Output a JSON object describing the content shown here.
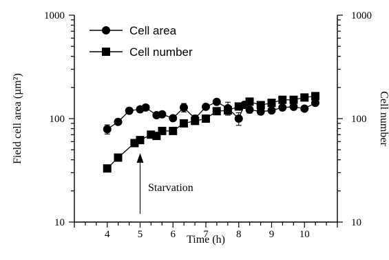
{
  "chart_data": {
    "type": "line",
    "xlabel": "Time (h)",
    "ylabel_left": "Field cell area (µm²)",
    "ylabel_right": "Cell number",
    "x_ticks": [
      "4",
      "5",
      "6",
      "7",
      "8",
      "9",
      "10"
    ],
    "y_ticks_left": [
      "10",
      "100",
      "1000"
    ],
    "y_ticks_right": [
      "10",
      "100",
      "1000"
    ],
    "y_scale": "log",
    "xlim": [
      3,
      11
    ],
    "ylim": [
      10,
      1000
    ],
    "grid": false,
    "legend_position": "top-left",
    "annotation": {
      "text": "Starvation",
      "x": 5.0
    },
    "series": [
      {
        "name": "Cell area",
        "marker": "circle",
        "x": [
          4.0,
          4.33,
          4.67,
          5.0,
          5.17,
          5.5,
          5.67,
          6.0,
          6.33,
          6.67,
          7.0,
          7.33,
          7.67,
          8.0,
          8.17,
          8.33,
          8.67,
          9.0,
          9.33,
          9.67,
          10.0,
          10.33
        ],
        "values": [
          79,
          93,
          119,
          123,
          128,
          108,
          110,
          101,
          128,
          100,
          130,
          145,
          126,
          100,
          136,
          122,
          117,
          120,
          128,
          130,
          125,
          142
        ],
        "error": [
          8,
          5,
          5,
          6,
          5,
          6,
          5,
          5,
          12,
          8,
          6,
          6,
          18,
          14,
          8,
          9,
          8,
          6,
          6,
          7,
          7,
          8
        ]
      },
      {
        "name": "Cell number",
        "marker": "square",
        "x": [
          4.0,
          4.33,
          4.83,
          5.0,
          5.33,
          5.5,
          5.67,
          6.0,
          6.33,
          6.67,
          7.0,
          7.33,
          7.67,
          8.0,
          8.33,
          8.67,
          9.0,
          9.33,
          9.67,
          10.0,
          10.33
        ],
        "values": [
          33,
          42,
          58,
          62,
          70,
          68,
          76,
          76,
          90,
          95,
          100,
          118,
          120,
          131,
          146,
          135,
          142,
          152,
          152,
          160,
          165
        ]
      }
    ]
  },
  "colors": {
    "ink": "#000000",
    "background": "#ffffff"
  }
}
